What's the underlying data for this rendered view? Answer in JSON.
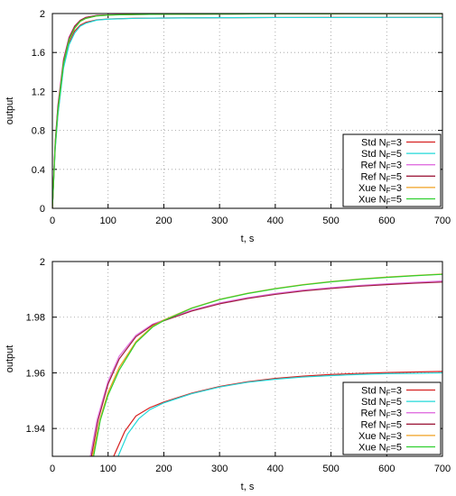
{
  "chart_data": [
    {
      "type": "line",
      "xlabel": "t, s",
      "ylabel": "output",
      "xlim": [
        0,
        700
      ],
      "ylim": [
        0,
        2
      ],
      "xticks": [
        "0",
        "100",
        "200",
        "300",
        "400",
        "500",
        "600",
        "700"
      ],
      "yticks": [
        "0",
        "0.4",
        "0.8",
        "1.2",
        "1.6",
        "2"
      ],
      "grid": true,
      "legend_position": "bottom-right",
      "series": [
        {
          "name": "Std N_F=3",
          "label_main": "Std N",
          "label_sub": "F",
          "label_tail": "=3",
          "color": "#d62020",
          "x": [
            0,
            5,
            10,
            20,
            30,
            40,
            50,
            60,
            80,
            100,
            150,
            200,
            300,
            400,
            500,
            600,
            700
          ],
          "y": [
            0,
            0.62,
            0.98,
            1.46,
            1.7,
            1.82,
            1.88,
            1.91,
            1.935,
            1.944,
            1.952,
            1.954,
            1.957,
            1.959,
            1.96,
            1.96,
            1.961
          ]
        },
        {
          "name": "Std N_F=5",
          "label_main": "Std N",
          "label_sub": "F",
          "label_tail": "=5",
          "color": "#22d8d8",
          "x": [
            0,
            5,
            10,
            20,
            30,
            40,
            50,
            60,
            80,
            100,
            150,
            200,
            300,
            400,
            500,
            600,
            700
          ],
          "y": [
            0,
            0.6,
            0.96,
            1.44,
            1.68,
            1.8,
            1.87,
            1.9,
            1.933,
            1.942,
            1.951,
            1.954,
            1.957,
            1.959,
            1.959,
            1.96,
            1.96
          ]
        },
        {
          "name": "Ref N_F=3",
          "label_main": "Ref N",
          "label_sub": "F",
          "label_tail": "=3",
          "color": "#e070e0",
          "x": [
            0,
            5,
            10,
            20,
            30,
            40,
            50,
            60,
            80,
            100,
            150,
            200,
            300,
            400,
            500,
            600,
            700
          ],
          "y": [
            0,
            0.68,
            1.06,
            1.53,
            1.76,
            1.87,
            1.93,
            1.96,
            1.982,
            1.986,
            1.99,
            1.9925,
            1.995,
            1.997,
            1.998,
            1.9985,
            1.999
          ]
        },
        {
          "name": "Ref N_F=5",
          "label_main": "Ref N",
          "label_sub": "F",
          "label_tail": "=5",
          "color": "#a02040",
          "x": [
            0,
            5,
            10,
            20,
            30,
            40,
            50,
            60,
            80,
            100,
            150,
            200,
            300,
            400,
            500,
            600,
            700
          ],
          "y": [
            0,
            0.67,
            1.05,
            1.52,
            1.75,
            1.87,
            1.93,
            1.96,
            1.981,
            1.986,
            1.99,
            1.9925,
            1.995,
            1.997,
            1.998,
            1.9985,
            1.999
          ]
        },
        {
          "name": "Xue N_F=3",
          "label_main": "Xue N",
          "label_sub": "F",
          "label_tail": "=3",
          "color": "#f0a020",
          "x": [
            0,
            5,
            10,
            20,
            30,
            40,
            50,
            60,
            80,
            100,
            150,
            200,
            300,
            400,
            500,
            600,
            700
          ],
          "y": [
            0,
            0.64,
            1.01,
            1.49,
            1.73,
            1.85,
            1.92,
            1.95,
            1.976,
            1.984,
            1.99,
            1.9925,
            1.995,
            1.997,
            1.998,
            1.9985,
            1.999
          ]
        },
        {
          "name": "Xue N_F=5",
          "label_main": "Xue N",
          "label_sub": "F",
          "label_tail": "=5",
          "color": "#30d030",
          "x": [
            0,
            5,
            10,
            20,
            30,
            40,
            50,
            60,
            80,
            100,
            150,
            200,
            300,
            400,
            500,
            600,
            700
          ],
          "y": [
            0,
            0.64,
            1.01,
            1.49,
            1.73,
            1.85,
            1.92,
            1.95,
            1.976,
            1.984,
            1.99,
            1.9925,
            1.995,
            1.997,
            1.998,
            1.9985,
            1.999
          ]
        }
      ]
    },
    {
      "type": "line",
      "xlabel": "t, s",
      "ylabel": "output",
      "xlim": [
        0,
        700
      ],
      "ylim": [
        1.93,
        2
      ],
      "xticks": [
        "0",
        "100",
        "200",
        "300",
        "400",
        "500",
        "600",
        "700"
      ],
      "yticks": [
        "1.94",
        "1.96",
        "1.98",
        "2"
      ],
      "grid": true,
      "legend_position": "bottom-right",
      "series": [
        {
          "name": "Std N_F=3",
          "label_main": "Std N",
          "label_sub": "F",
          "label_tail": "=3",
          "color": "#d62020",
          "x": [
            110,
            130,
            150,
            175,
            200,
            250,
            300,
            350,
            400,
            450,
            500,
            550,
            600,
            650,
            700
          ],
          "y": [
            1.93,
            1.939,
            1.9445,
            1.9475,
            1.9495,
            1.9527,
            1.9551,
            1.9568,
            1.958,
            1.9588,
            1.9594,
            1.9598,
            1.9601,
            1.9603,
            1.9605
          ]
        },
        {
          "name": "Std N_F=5",
          "label_main": "Std N",
          "label_sub": "F",
          "label_tail": "=5",
          "color": "#22d8d8",
          "x": [
            118,
            135,
            155,
            175,
            200,
            250,
            300,
            350,
            400,
            450,
            500,
            550,
            600,
            650,
            700
          ],
          "y": [
            1.93,
            1.938,
            1.9435,
            1.9468,
            1.9492,
            1.9525,
            1.9549,
            1.9566,
            1.9577,
            1.9585,
            1.959,
            1.9594,
            1.9597,
            1.9598,
            1.96
          ]
        },
        {
          "name": "Ref N_F=3",
          "label_main": "Ref N",
          "label_sub": "F",
          "label_tail": "=3",
          "color": "#e070e0",
          "x": [
            68,
            80,
            100,
            120,
            150,
            180,
            200,
            250,
            300,
            350,
            400,
            450,
            500,
            550,
            600,
            650,
            700
          ],
          "y": [
            1.93,
            1.943,
            1.957,
            1.966,
            1.9735,
            1.9775,
            1.979,
            1.9825,
            1.9851,
            1.987,
            1.9885,
            1.9897,
            1.9906,
            1.9914,
            1.992,
            1.9925,
            1.993
          ]
        },
        {
          "name": "Ref N_F=5",
          "label_main": "Ref N",
          "label_sub": "F",
          "label_tail": "=5",
          "color": "#a02040",
          "x": [
            70,
            82,
            100,
            120,
            150,
            180,
            200,
            250,
            300,
            350,
            400,
            450,
            500,
            550,
            600,
            650,
            700
          ],
          "y": [
            1.93,
            1.943,
            1.956,
            1.965,
            1.973,
            1.9772,
            1.9787,
            1.9822,
            1.9848,
            1.9867,
            1.9882,
            1.9894,
            1.9903,
            1.9911,
            1.9917,
            1.9922,
            1.9926
          ]
        },
        {
          "name": "Xue N_F=3",
          "label_main": "Xue N",
          "label_sub": "F",
          "label_tail": "=3",
          "color": "#f0a020",
          "x": [
            72,
            85,
            100,
            120,
            150,
            180,
            200,
            250,
            300,
            350,
            400,
            450,
            500,
            550,
            600,
            650,
            700
          ],
          "y": [
            1.93,
            1.943,
            1.953,
            1.962,
            1.9712,
            1.9768,
            1.979,
            1.9833,
            1.9864,
            1.9886,
            1.9903,
            1.9917,
            1.9928,
            1.9937,
            1.9944,
            1.995,
            1.9955
          ]
        },
        {
          "name": "Xue N_F=5",
          "label_main": "Xue N",
          "label_sub": "F",
          "label_tail": "=5",
          "color": "#30d030",
          "x": [
            74,
            86,
            100,
            120,
            150,
            180,
            200,
            250,
            300,
            350,
            400,
            450,
            500,
            550,
            600,
            650,
            700
          ],
          "y": [
            1.93,
            1.943,
            1.952,
            1.961,
            1.9708,
            1.9765,
            1.9788,
            1.9832,
            1.9863,
            1.9885,
            1.9902,
            1.9916,
            1.9927,
            1.9936,
            1.9943,
            1.9949,
            1.9954
          ]
        }
      ]
    }
  ]
}
